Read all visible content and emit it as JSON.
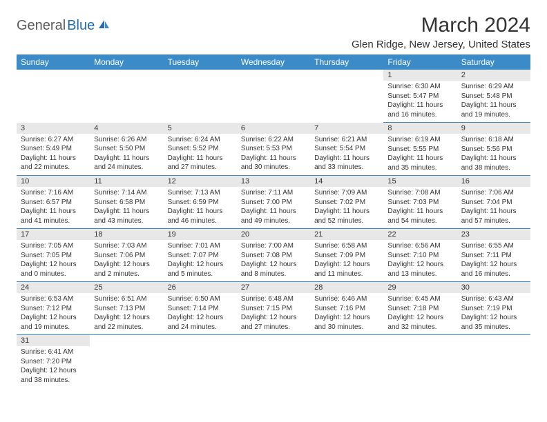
{
  "logo": {
    "text1": "General",
    "text2": "Blue"
  },
  "title": "March 2024",
  "location": "Glen Ridge, New Jersey, United States",
  "colors": {
    "header_bg": "#3b8bc9",
    "header_text": "#ffffff",
    "daynum_bg": "#e8e8e8",
    "border": "#3b8bc9",
    "text": "#333333",
    "logo_gray": "#5a5a5a",
    "logo_blue": "#1f6bb5"
  },
  "weekdays": [
    "Sunday",
    "Monday",
    "Tuesday",
    "Wednesday",
    "Thursday",
    "Friday",
    "Saturday"
  ],
  "cells": [
    {
      "blank": true
    },
    {
      "blank": true
    },
    {
      "blank": true
    },
    {
      "blank": true
    },
    {
      "blank": true
    },
    {
      "day": "1",
      "sunrise": "Sunrise: 6:30 AM",
      "sunset": "Sunset: 5:47 PM",
      "daylight": "Daylight: 11 hours and 16 minutes."
    },
    {
      "day": "2",
      "sunrise": "Sunrise: 6:29 AM",
      "sunset": "Sunset: 5:48 PM",
      "daylight": "Daylight: 11 hours and 19 minutes."
    },
    {
      "day": "3",
      "sunrise": "Sunrise: 6:27 AM",
      "sunset": "Sunset: 5:49 PM",
      "daylight": "Daylight: 11 hours and 22 minutes."
    },
    {
      "day": "4",
      "sunrise": "Sunrise: 6:26 AM",
      "sunset": "Sunset: 5:50 PM",
      "daylight": "Daylight: 11 hours and 24 minutes."
    },
    {
      "day": "5",
      "sunrise": "Sunrise: 6:24 AM",
      "sunset": "Sunset: 5:52 PM",
      "daylight": "Daylight: 11 hours and 27 minutes."
    },
    {
      "day": "6",
      "sunrise": "Sunrise: 6:22 AM",
      "sunset": "Sunset: 5:53 PM",
      "daylight": "Daylight: 11 hours and 30 minutes."
    },
    {
      "day": "7",
      "sunrise": "Sunrise: 6:21 AM",
      "sunset": "Sunset: 5:54 PM",
      "daylight": "Daylight: 11 hours and 33 minutes."
    },
    {
      "day": "8",
      "sunrise": "Sunrise: 6:19 AM",
      "sunset": "Sunset: 5:55 PM",
      "daylight": "Daylight: 11 hours and 35 minutes."
    },
    {
      "day": "9",
      "sunrise": "Sunrise: 6:18 AM",
      "sunset": "Sunset: 5:56 PM",
      "daylight": "Daylight: 11 hours and 38 minutes."
    },
    {
      "day": "10",
      "sunrise": "Sunrise: 7:16 AM",
      "sunset": "Sunset: 6:57 PM",
      "daylight": "Daylight: 11 hours and 41 minutes."
    },
    {
      "day": "11",
      "sunrise": "Sunrise: 7:14 AM",
      "sunset": "Sunset: 6:58 PM",
      "daylight": "Daylight: 11 hours and 43 minutes."
    },
    {
      "day": "12",
      "sunrise": "Sunrise: 7:13 AM",
      "sunset": "Sunset: 6:59 PM",
      "daylight": "Daylight: 11 hours and 46 minutes."
    },
    {
      "day": "13",
      "sunrise": "Sunrise: 7:11 AM",
      "sunset": "Sunset: 7:00 PM",
      "daylight": "Daylight: 11 hours and 49 minutes."
    },
    {
      "day": "14",
      "sunrise": "Sunrise: 7:09 AM",
      "sunset": "Sunset: 7:02 PM",
      "daylight": "Daylight: 11 hours and 52 minutes."
    },
    {
      "day": "15",
      "sunrise": "Sunrise: 7:08 AM",
      "sunset": "Sunset: 7:03 PM",
      "daylight": "Daylight: 11 hours and 54 minutes."
    },
    {
      "day": "16",
      "sunrise": "Sunrise: 7:06 AM",
      "sunset": "Sunset: 7:04 PM",
      "daylight": "Daylight: 11 hours and 57 minutes."
    },
    {
      "day": "17",
      "sunrise": "Sunrise: 7:05 AM",
      "sunset": "Sunset: 7:05 PM",
      "daylight": "Daylight: 12 hours and 0 minutes."
    },
    {
      "day": "18",
      "sunrise": "Sunrise: 7:03 AM",
      "sunset": "Sunset: 7:06 PM",
      "daylight": "Daylight: 12 hours and 2 minutes."
    },
    {
      "day": "19",
      "sunrise": "Sunrise: 7:01 AM",
      "sunset": "Sunset: 7:07 PM",
      "daylight": "Daylight: 12 hours and 5 minutes."
    },
    {
      "day": "20",
      "sunrise": "Sunrise: 7:00 AM",
      "sunset": "Sunset: 7:08 PM",
      "daylight": "Daylight: 12 hours and 8 minutes."
    },
    {
      "day": "21",
      "sunrise": "Sunrise: 6:58 AM",
      "sunset": "Sunset: 7:09 PM",
      "daylight": "Daylight: 12 hours and 11 minutes."
    },
    {
      "day": "22",
      "sunrise": "Sunrise: 6:56 AM",
      "sunset": "Sunset: 7:10 PM",
      "daylight": "Daylight: 12 hours and 13 minutes."
    },
    {
      "day": "23",
      "sunrise": "Sunrise: 6:55 AM",
      "sunset": "Sunset: 7:11 PM",
      "daylight": "Daylight: 12 hours and 16 minutes."
    },
    {
      "day": "24",
      "sunrise": "Sunrise: 6:53 AM",
      "sunset": "Sunset: 7:12 PM",
      "daylight": "Daylight: 12 hours and 19 minutes."
    },
    {
      "day": "25",
      "sunrise": "Sunrise: 6:51 AM",
      "sunset": "Sunset: 7:13 PM",
      "daylight": "Daylight: 12 hours and 22 minutes."
    },
    {
      "day": "26",
      "sunrise": "Sunrise: 6:50 AM",
      "sunset": "Sunset: 7:14 PM",
      "daylight": "Daylight: 12 hours and 24 minutes."
    },
    {
      "day": "27",
      "sunrise": "Sunrise: 6:48 AM",
      "sunset": "Sunset: 7:15 PM",
      "daylight": "Daylight: 12 hours and 27 minutes."
    },
    {
      "day": "28",
      "sunrise": "Sunrise: 6:46 AM",
      "sunset": "Sunset: 7:16 PM",
      "daylight": "Daylight: 12 hours and 30 minutes."
    },
    {
      "day": "29",
      "sunrise": "Sunrise: 6:45 AM",
      "sunset": "Sunset: 7:18 PM",
      "daylight": "Daylight: 12 hours and 32 minutes."
    },
    {
      "day": "30",
      "sunrise": "Sunrise: 6:43 AM",
      "sunset": "Sunset: 7:19 PM",
      "daylight": "Daylight: 12 hours and 35 minutes."
    },
    {
      "day": "31",
      "sunrise": "Sunrise: 6:41 AM",
      "sunset": "Sunset: 7:20 PM",
      "daylight": "Daylight: 12 hours and 38 minutes."
    },
    {
      "blank": true
    },
    {
      "blank": true
    },
    {
      "blank": true
    },
    {
      "blank": true
    },
    {
      "blank": true
    },
    {
      "blank": true
    }
  ]
}
